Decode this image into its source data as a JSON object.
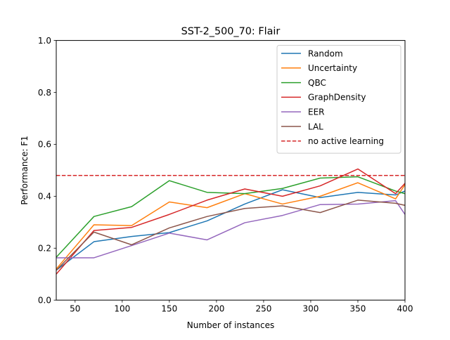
{
  "chart_data": {
    "type": "line",
    "title": "SST-2_500_70: Flair",
    "xlabel": "Number of instances",
    "ylabel": "Performance: F1",
    "xlim": [
      30,
      400
    ],
    "ylim": [
      0.0,
      1.0
    ],
    "xticks": [
      "50",
      "100",
      "150",
      "200",
      "250",
      "300",
      "350",
      "400"
    ],
    "yticks": [
      "0.0",
      "0.2",
      "0.4",
      "0.6",
      "0.8",
      "1.0"
    ],
    "xtick_values": [
      50,
      100,
      150,
      200,
      250,
      300,
      350,
      400
    ],
    "ytick_values": [
      0.0,
      0.2,
      0.4,
      0.6,
      0.8,
      1.0
    ],
    "grid": false,
    "legend_position": "upper right",
    "x": [
      30,
      70,
      110,
      150,
      190,
      230,
      270,
      310,
      350,
      390,
      400
    ],
    "series": [
      {
        "name": "Random",
        "color": "#1f77b4",
        "values": [
          0.115,
          0.225,
          0.245,
          0.26,
          0.305,
          0.37,
          0.425,
          0.395,
          0.415,
          0.405,
          0.42
        ]
      },
      {
        "name": "Uncertainty",
        "color": "#ff7f0e",
        "values": [
          0.12,
          0.29,
          0.287,
          0.378,
          0.356,
          0.41,
          0.37,
          0.4,
          0.452,
          0.39,
          0.445
        ]
      },
      {
        "name": "QBC",
        "color": "#2ca02c",
        "values": [
          0.165,
          0.322,
          0.36,
          0.46,
          0.415,
          0.41,
          0.43,
          0.47,
          0.475,
          0.42,
          0.41
        ]
      },
      {
        "name": "GraphDensity",
        "color": "#d62728",
        "values": [
          0.1,
          0.268,
          0.28,
          0.33,
          0.385,
          0.428,
          0.4,
          0.44,
          0.505,
          0.41,
          0.45
        ]
      },
      {
        "name": "EER",
        "color": "#9467bd",
        "values": [
          0.163,
          0.163,
          0.21,
          0.258,
          0.232,
          0.298,
          0.326,
          0.368,
          0.37,
          0.383,
          0.33
        ]
      },
      {
        "name": "LAL",
        "color": "#8c564b",
        "values": [
          0.115,
          0.262,
          0.213,
          0.278,
          0.322,
          0.353,
          0.363,
          0.337,
          0.385,
          0.373,
          0.365
        ]
      }
    ],
    "reference_line": {
      "name": "no active learning",
      "color": "#d62728",
      "value": 0.48,
      "style": "dashed"
    }
  }
}
